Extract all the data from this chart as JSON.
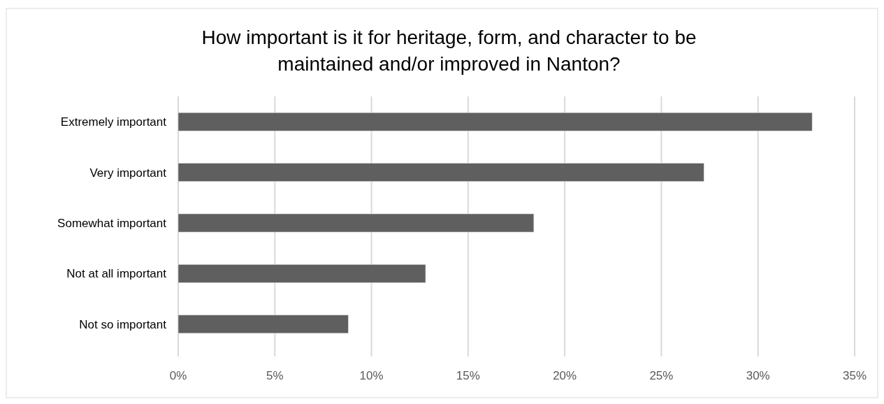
{
  "chart_data": {
    "type": "bar",
    "orientation": "horizontal",
    "title": "How important is it for heritage, form, and character to be maintained and/or improved in Nanton?",
    "categories": [
      "Extremely important",
      "Very important",
      "Somewhat important",
      "Not at all important",
      "Not so important"
    ],
    "values": [
      32.8,
      27.2,
      18.4,
      12.8,
      8.8
    ],
    "color": "#5f5f5f",
    "xlim": [
      0,
      35
    ],
    "xticks": [
      {
        "value": 0,
        "label": "0%"
      },
      {
        "value": 5,
        "label": "5%"
      },
      {
        "value": 10,
        "label": "10%"
      },
      {
        "value": 15,
        "label": "15%"
      },
      {
        "value": 20,
        "label": "20%"
      },
      {
        "value": 25,
        "label": "25%"
      },
      {
        "value": 30,
        "label": "30%"
      },
      {
        "value": 35,
        "label": "35%"
      }
    ],
    "grid": "x"
  }
}
